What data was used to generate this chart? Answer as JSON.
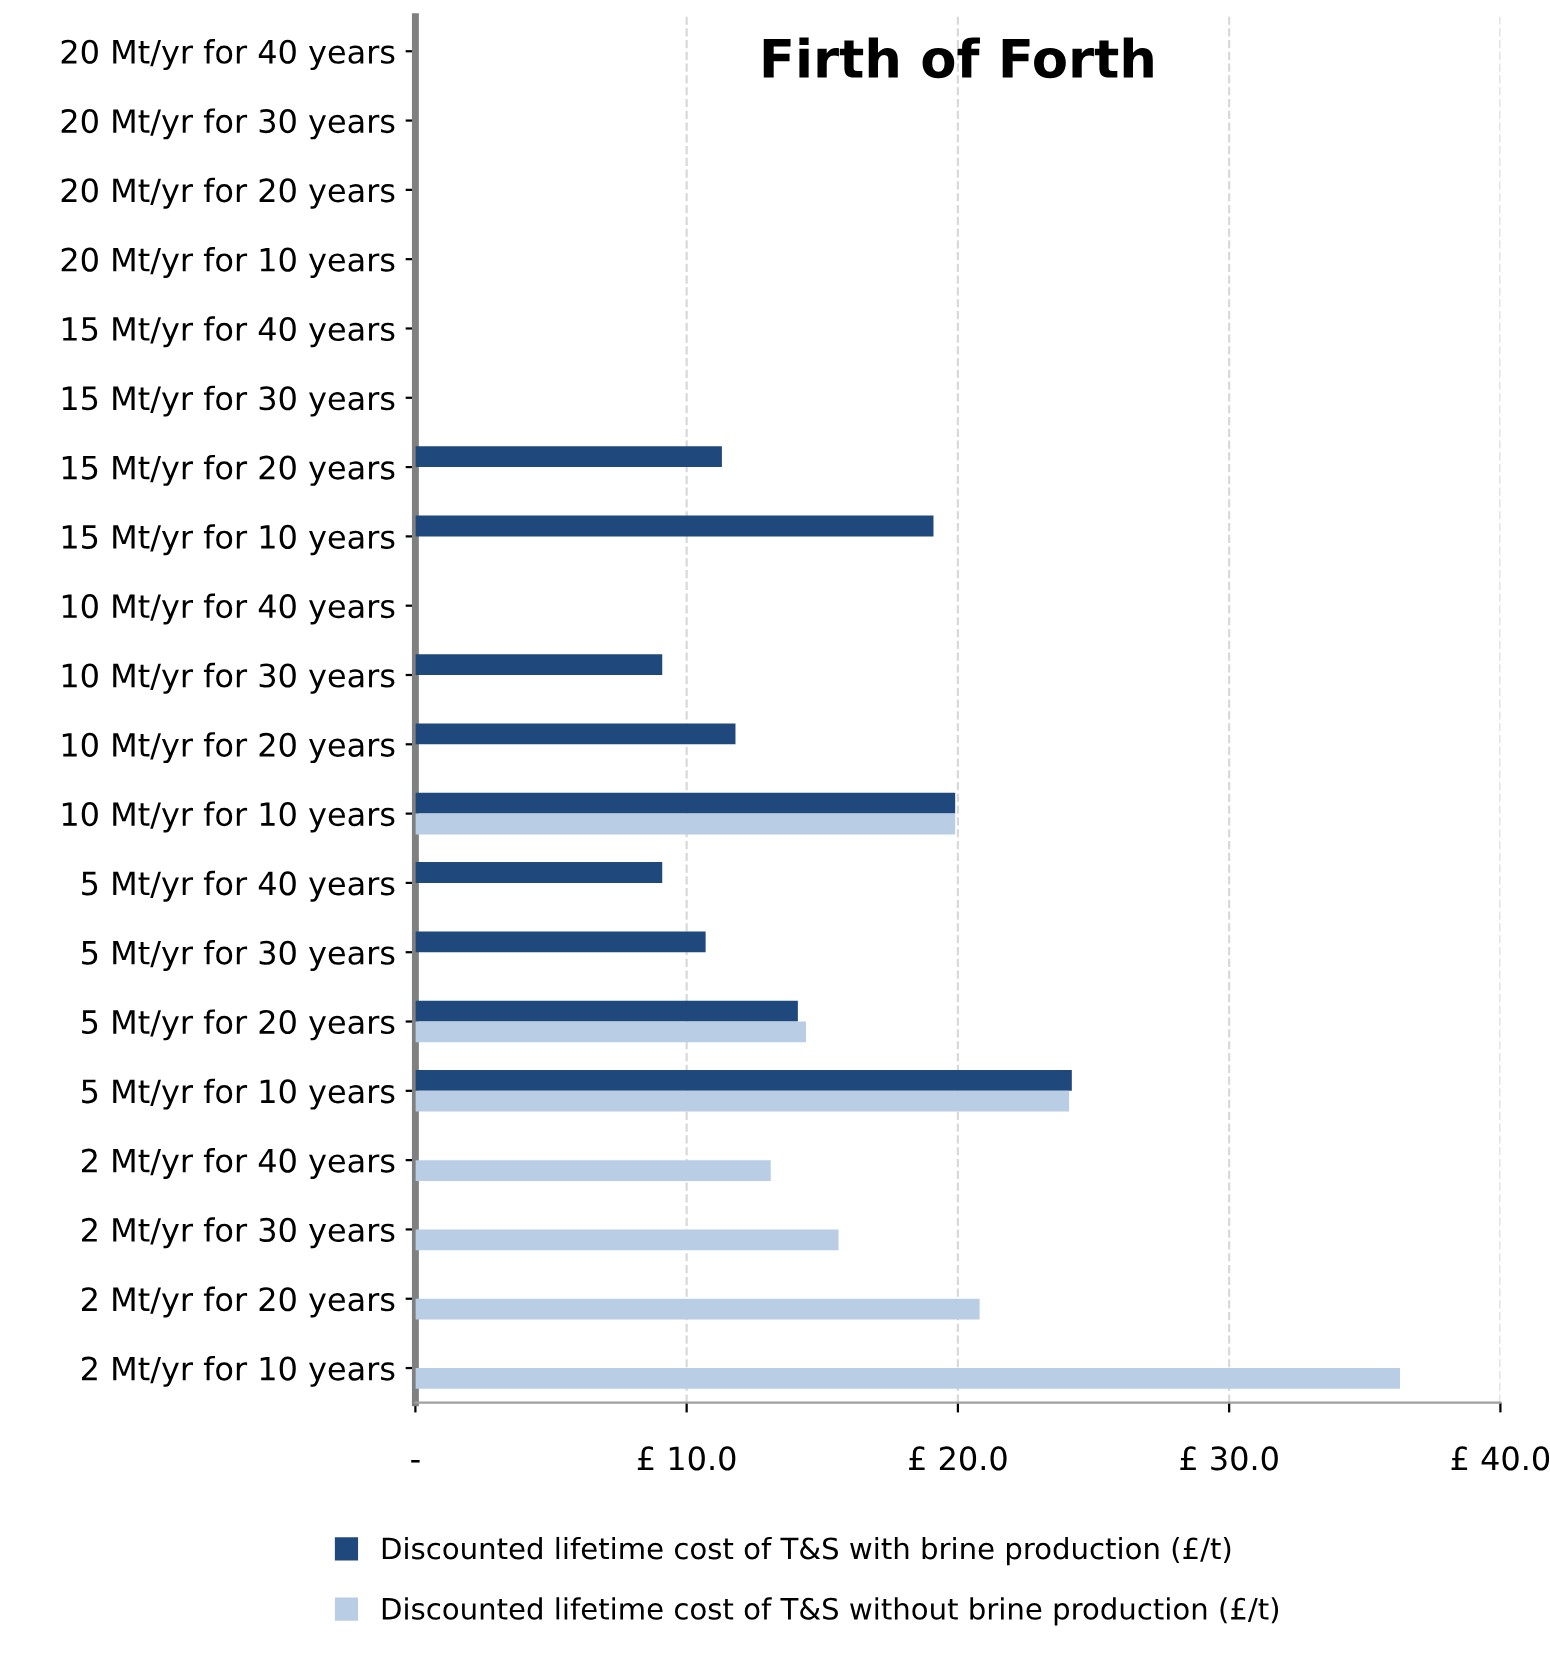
{
  "chart_data": {
    "type": "bar",
    "orientation": "horizontal",
    "title": "Firth of Forth",
    "categories": [
      "20 Mt/yr for 40 years",
      "20 Mt/yr for 30 years",
      "20 Mt/yr for 20 years",
      "20 Mt/yr for 10 years",
      "15 Mt/yr for 40 years",
      "15 Mt/yr for 30 years",
      "15 Mt/yr for 20 years",
      "15 Mt/yr for 10 years",
      "10 Mt/yr for 40 years",
      "10 Mt/yr for 30 years",
      "10 Mt/yr for 20 years",
      "10 Mt/yr for 10 years",
      "5 Mt/yr for 40 years",
      "5 Mt/yr for 30 years",
      "5 Mt/yr for 20 years",
      "5 Mt/yr for 10 years",
      "2 Mt/yr for 40 years",
      "2 Mt/yr for 30 years",
      "2 Mt/yr for 20 years",
      "2 Mt/yr for 10 years"
    ],
    "series": [
      {
        "name": "Discounted lifetime cost of T&S with brine production (£/t)",
        "color": "#1f497d",
        "values": [
          null,
          null,
          null,
          null,
          null,
          null,
          11.3,
          19.1,
          null,
          9.1,
          11.8,
          19.9,
          9.1,
          10.7,
          14.1,
          24.2,
          null,
          null,
          null,
          null
        ]
      },
      {
        "name": "Discounted lifetime cost of T&S without brine production (£/t)",
        "color": "#b9cde5",
        "values": [
          null,
          null,
          null,
          null,
          null,
          null,
          null,
          null,
          null,
          null,
          null,
          19.9,
          null,
          null,
          14.4,
          24.1,
          13.1,
          15.6,
          20.8,
          36.3
        ]
      }
    ],
    "xlim": [
      0,
      40
    ],
    "xticks": [
      {
        "value": 0,
        "label": "-"
      },
      {
        "value": 10,
        "label": "£ 10.0"
      },
      {
        "value": 20,
        "label": "£ 20.0"
      },
      {
        "value": 30,
        "label": "£ 30.0"
      },
      {
        "value": 40,
        "label": "£ 40.0"
      }
    ],
    "grid": "x",
    "legend": "bottom"
  }
}
